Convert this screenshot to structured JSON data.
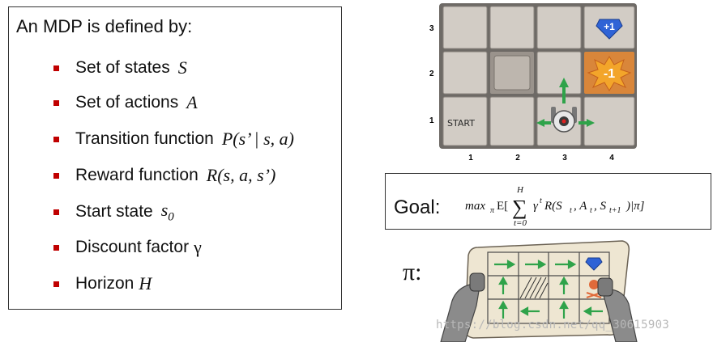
{
  "definition": {
    "title": "An MDP is defined by:",
    "items": [
      {
        "label": "Set of states",
        "math": "S"
      },
      {
        "label": "Set of actions",
        "math": "A"
      },
      {
        "label": "Transition function",
        "math": "P(s’ | s, a)"
      },
      {
        "label": "Reward function",
        "math": "R(s, a, s’)"
      },
      {
        "label": "Start state",
        "math": "s",
        "sub": "0"
      },
      {
        "label": "Discount factor",
        "math": "γ"
      },
      {
        "label": "Horizon",
        "math": "H"
      }
    ]
  },
  "grid_world": {
    "col_labels": [
      "1",
      "2",
      "3",
      "4"
    ],
    "row_labels": [
      "3",
      "2",
      "1"
    ],
    "start_label": "START",
    "positive_reward": "+1",
    "negative_reward": "-1"
  },
  "goal": {
    "label": "Goal:",
    "formula_prefix": "max",
    "formula_sub": "π",
    "formula_e": "E[",
    "sum_upper": "H",
    "sum_lower": "t=0",
    "formula_body": "γ",
    "formula_exp": "t",
    "formula_rest": "R(S",
    "formula_rest2": ", A",
    "formula_rest3": ", S",
    "formula_rest4": ")|π]",
    "sub_t": "t",
    "sub_t1": "t+1"
  },
  "policy": {
    "label": "π:"
  },
  "watermark": "https://blog.csdn.net/qq_30615903"
}
